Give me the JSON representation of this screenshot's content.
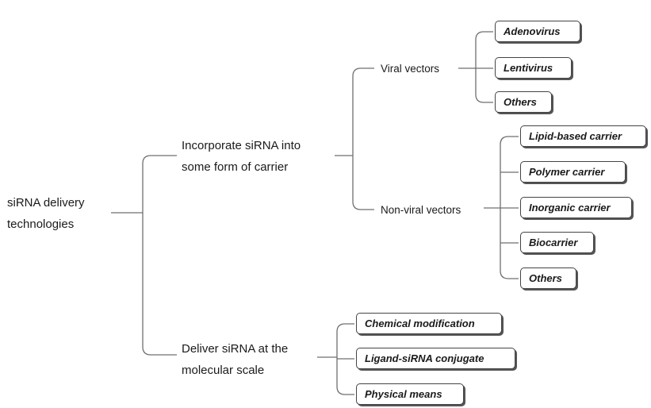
{
  "root": {
    "line1": "siRNA delivery",
    "line2": "technologies"
  },
  "branches": {
    "carrier": {
      "line1": "Incorporate siRNA into",
      "line2": "some form of carrier"
    },
    "molecular": {
      "line1": "Deliver siRNA at the",
      "line2": "molecular scale"
    }
  },
  "groups": {
    "viral": {
      "label": "Viral vectors",
      "items": [
        "Adenovirus",
        "Lentivirus",
        "Others"
      ]
    },
    "non_viral": {
      "label": "Non-viral vectors",
      "items": [
        "Lipid-based carrier",
        "Polymer carrier",
        "Inorganic carrier",
        "Biocarrier",
        "Others"
      ]
    },
    "molecular_items": [
      "Chemical modification",
      "Ligand-siRNA conjugate",
      "Physical means"
    ]
  }
}
